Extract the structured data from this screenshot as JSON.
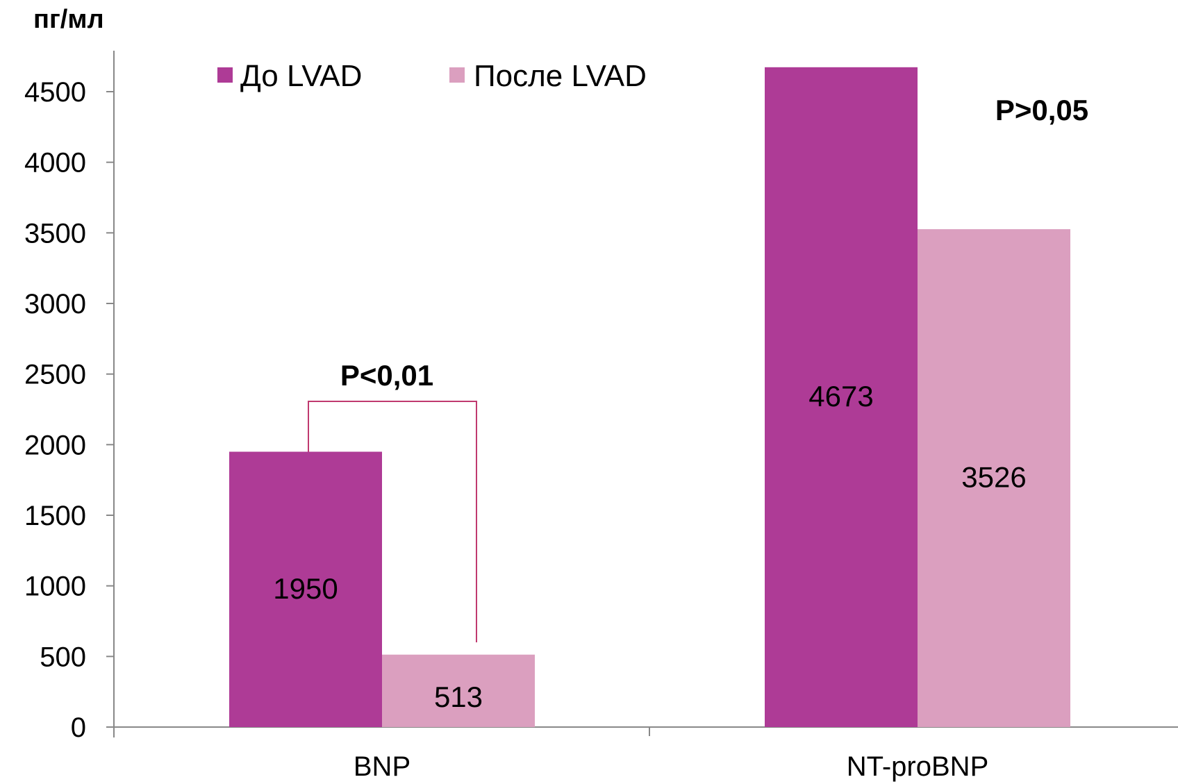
{
  "chart_data": {
    "type": "bar",
    "ylabel": "пг/мл",
    "categories": [
      "BNP",
      "NT-proBNP"
    ],
    "series": [
      {
        "name": "До LVAD",
        "values": [
          1950,
          4673
        ],
        "color": "#ae3b96"
      },
      {
        "name": "После LVAD",
        "values": [
          513,
          3526
        ],
        "color": "#db9fbf"
      }
    ],
    "ylim": [
      0,
      4500
    ],
    "yticks": [
      0,
      500,
      1000,
      1500,
      2000,
      2500,
      3000,
      3500,
      4000,
      4500
    ],
    "data_labels": [
      "1950",
      "513",
      "4673",
      "3526"
    ],
    "annotations": [
      {
        "text": "P<0,01",
        "category": "BNP",
        "bracket": true,
        "bracket_color": "#c0396f"
      },
      {
        "text": "P>0,05",
        "category": "NT-proBNP",
        "bracket": false
      }
    ],
    "legend_position": "top",
    "grid": false
  }
}
